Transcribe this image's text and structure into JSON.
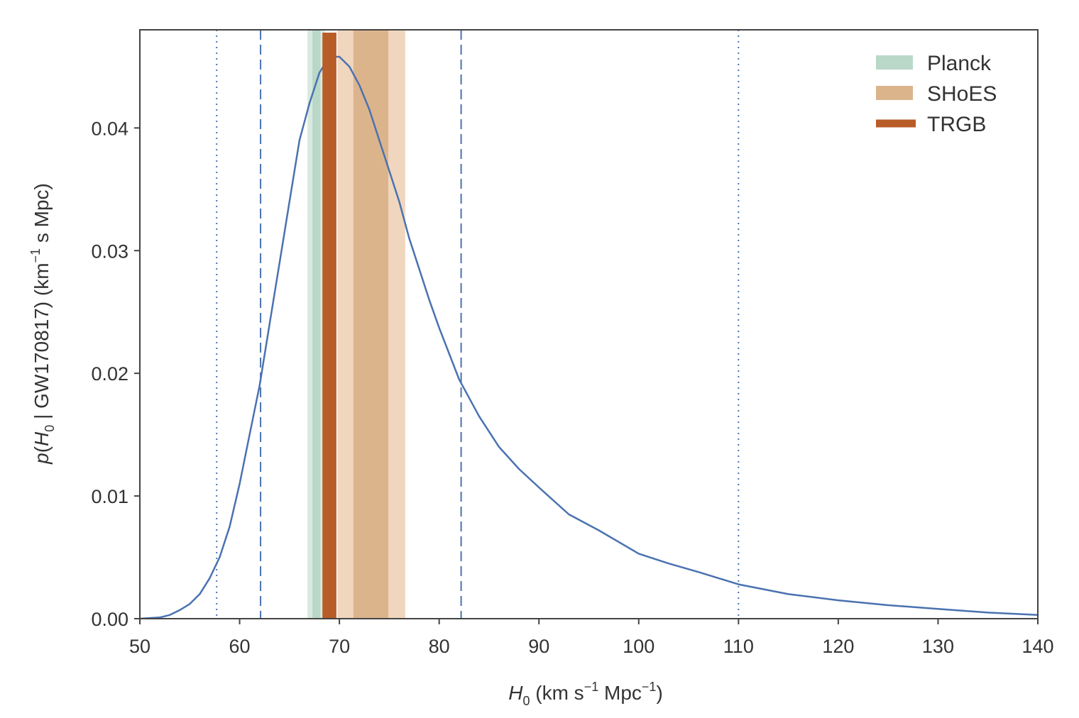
{
  "chart_data": {
    "type": "line",
    "xlabel_parts": {
      "var": "H",
      "sub": "0",
      "u1": " (km s",
      "sup1": "−1",
      "u2": " Mpc",
      "sup2": "−1",
      "u3": ")"
    },
    "ylabel_parts": {
      "p": "p",
      "open": "(",
      "var": "H",
      "sub": "0",
      "mid": " | GW170817) (km",
      "sup": "−1",
      "end": " s Mpc)"
    },
    "xlim": [
      50,
      140
    ],
    "ylim": [
      0,
      0.048
    ],
    "x_ticks": [
      50,
      60,
      70,
      80,
      90,
      100,
      110,
      120,
      130,
      140
    ],
    "x_tick_labels": [
      "50",
      "60",
      "70",
      "80",
      "90",
      "100",
      "110",
      "120",
      "130",
      "140"
    ],
    "y_ticks": [
      0,
      0.01,
      0.02,
      0.03,
      0.04
    ],
    "y_tick_labels": [
      "0.00",
      "0.01",
      "0.02",
      "0.03",
      "0.04"
    ],
    "series": [
      {
        "color": "#4a72b0",
        "x": [
          50,
          51,
          52,
          53,
          54,
          55,
          56,
          57,
          58,
          59,
          60,
          61,
          62,
          63,
          64,
          65,
          66,
          67,
          68,
          69,
          70,
          71,
          72,
          73,
          74,
          75,
          76,
          77,
          78,
          79,
          80,
          82,
          84,
          86,
          88,
          90,
          93,
          96,
          100,
          103,
          106,
          110,
          115,
          120,
          125,
          130,
          135,
          140
        ],
        "y": [
          0.0,
          5e-05,
          0.0001,
          0.0003,
          0.0007,
          0.0012,
          0.002,
          0.0033,
          0.005,
          0.0075,
          0.011,
          0.015,
          0.019,
          0.024,
          0.029,
          0.034,
          0.039,
          0.042,
          0.0445,
          0.0458,
          0.0458,
          0.045,
          0.0435,
          0.0415,
          0.039,
          0.0365,
          0.034,
          0.031,
          0.0285,
          0.026,
          0.0237,
          0.0195,
          0.0165,
          0.014,
          0.0122,
          0.0107,
          0.0085,
          0.0072,
          0.0053,
          0.0045,
          0.0038,
          0.0028,
          0.002,
          0.0015,
          0.0011,
          0.0008,
          0.0005,
          0.0003
        ]
      }
    ],
    "bands": [
      {
        "name": "Planck",
        "inner": [
          67.3,
          68.1
        ],
        "outer": [
          66.8,
          68.6
        ],
        "inner_color": "#b9d8c8",
        "outer_color": "#d8e9df"
      },
      {
        "name": "SHoES",
        "inner": [
          71.4,
          74.9
        ],
        "outer": [
          69.8,
          76.6
        ],
        "inner_color": "#dcb48c",
        "outer_color": "#f0d6be"
      },
      {
        "name": "TRGB",
        "inner": [
          68.3,
          69.7
        ],
        "color": "#b85c28"
      }
    ],
    "vlines_dashed": [
      62.1,
      82.2
    ],
    "vlines_dotted": [
      57.7,
      110
    ],
    "legend": {
      "position": "top-right",
      "entries": [
        "Planck",
        "SHoES",
        "TRGB"
      ]
    },
    "grid": false
  }
}
